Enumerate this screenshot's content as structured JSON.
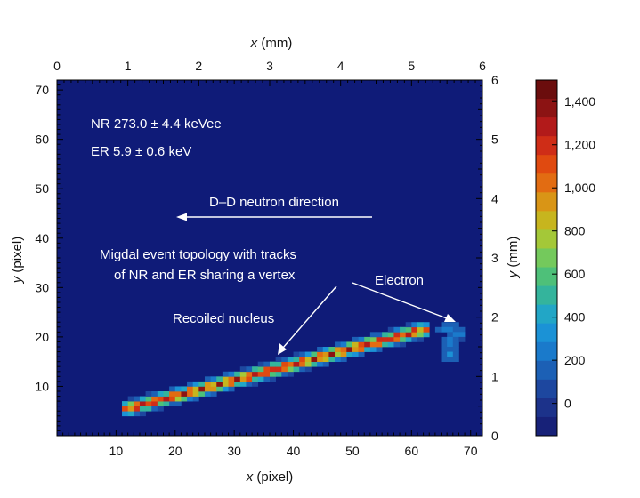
{
  "chart_data": {
    "type": "heatmap",
    "grid": {
      "x_min": 0,
      "x_max": 72,
      "y_min": 0,
      "y_max": 72
    },
    "x_pixel_ticks": [
      10,
      20,
      30,
      40,
      50,
      60,
      70
    ],
    "y_pixel_ticks": [
      10,
      20,
      30,
      40,
      50,
      60,
      70
    ],
    "x_mm_ticks": [
      0,
      1,
      2,
      3,
      4,
      5,
      6
    ],
    "y_mm_ticks": [
      0,
      1,
      2,
      3,
      4,
      5,
      6
    ],
    "xlabel_bottom": {
      "var": "x",
      "unit": " (pixel)"
    },
    "ylabel_left": {
      "var": "y",
      "unit": " (pixel)"
    },
    "xlabel_top": {
      "var": "x",
      "unit": " (mm)"
    },
    "ylabel_right": {
      "var": "y",
      "unit": " (mm)"
    },
    "colorbar": {
      "min": -150,
      "max": 1500,
      "ticks": [
        "1,400",
        "1,200",
        "1,000",
        "800",
        "600",
        "400",
        "200",
        "0"
      ],
      "tick_values": [
        1400,
        1200,
        1000,
        800,
        600,
        400,
        200,
        0
      ],
      "colors": [
        "#6b0d0d",
        "#8c1313",
        "#b21a1a",
        "#cf2d17",
        "#e04a10",
        "#e26c12",
        "#d99516",
        "#c7b51e",
        "#a4c838",
        "#74c95c",
        "#4ec079",
        "#34b49c",
        "#22a6c6",
        "#1b92d6",
        "#1a7acb",
        "#1c60b5",
        "#1d479f",
        "#1c328a",
        "#172178"
      ]
    },
    "background_color": "#0f1b78",
    "annotations": {
      "nr": "NR 273.0 ± 4.4 keVee",
      "er": "ER 5.9 ± 0.6 keV",
      "direction": "D–D neutron direction",
      "topology_line1": "Migdal event topology with tracks",
      "topology_line2": "of NR and ER sharing a vertex",
      "electron": "Electron",
      "recoil": "Recoiled nucleus"
    },
    "nr_track": {
      "start": [
        12,
        5.5
      ],
      "end": [
        62,
        21.5
      ],
      "half_width": 1.8,
      "peak_intensity": 1400
    },
    "er_blob": [
      [
        65,
        22,
        150
      ],
      [
        66,
        22,
        170
      ],
      [
        67,
        22,
        140
      ],
      [
        64,
        21,
        150
      ],
      [
        65,
        21,
        260
      ],
      [
        66,
        21,
        230
      ],
      [
        67,
        21,
        190
      ],
      [
        68,
        21,
        120
      ],
      [
        66,
        20,
        180
      ],
      [
        67,
        20,
        240
      ],
      [
        68,
        20,
        200
      ],
      [
        65,
        19,
        160
      ],
      [
        66,
        19,
        210
      ],
      [
        67,
        19,
        170
      ],
      [
        68,
        19,
        110
      ],
      [
        65,
        18,
        140
      ],
      [
        66,
        18,
        220
      ],
      [
        67,
        18,
        150
      ],
      [
        65,
        17,
        150
      ],
      [
        66,
        17,
        180
      ],
      [
        67,
        17,
        160
      ],
      [
        65,
        16,
        140
      ],
      [
        66,
        16,
        310
      ],
      [
        67,
        16,
        170
      ],
      [
        65,
        15,
        130
      ],
      [
        66,
        15,
        150
      ],
      [
        67,
        15,
        140
      ]
    ]
  }
}
